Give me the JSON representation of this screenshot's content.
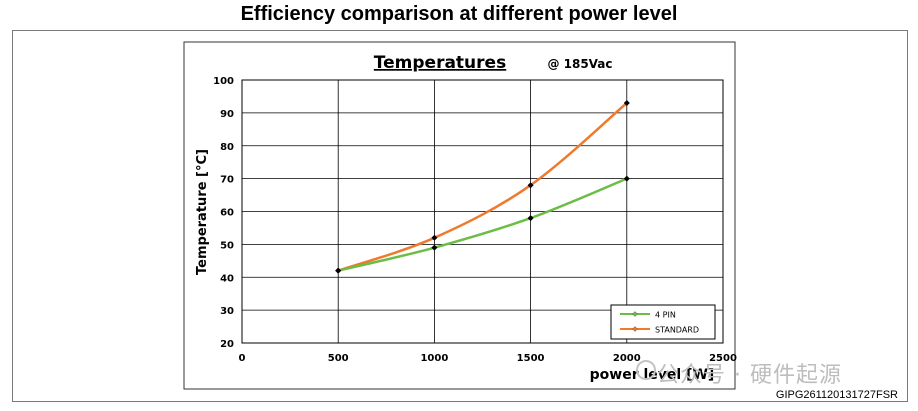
{
  "page": {
    "title": "Efficiency comparison at different power level",
    "watermark": "公众号 · 硬件起源",
    "code": "GIPG261120131727FSR"
  },
  "chart_data": {
    "type": "line",
    "title": "Temperatures",
    "subtitle": "@ 185Vac",
    "xlabel": "power level [W]",
    "ylabel": "Temperature  [°C]",
    "xlim": [
      0,
      2500
    ],
    "ylim": [
      20,
      100
    ],
    "xticks": [
      0,
      500,
      1000,
      1500,
      2000,
      2500
    ],
    "yticks": [
      20,
      30,
      40,
      50,
      60,
      70,
      80,
      90,
      100
    ],
    "grid": true,
    "legend_position": "bottom-right",
    "x": [
      500,
      1000,
      1500,
      2000
    ],
    "series": [
      {
        "name": "4 PIN",
        "color": "#6bbd45",
        "values": [
          42,
          49,
          58,
          70
        ]
      },
      {
        "name": "STANDARD",
        "color": "#ef7a2e",
        "values": [
          42,
          52,
          68,
          93
        ]
      }
    ]
  }
}
